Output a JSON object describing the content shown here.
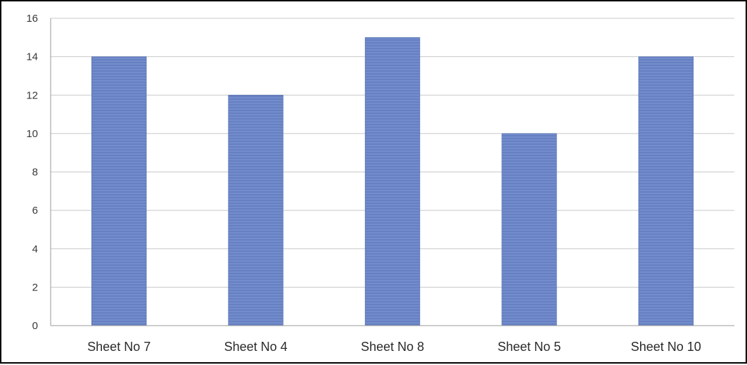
{
  "chart_data": {
    "type": "bar",
    "categories": [
      "Sheet No 7",
      "Sheet No 4",
      "Sheet No 8",
      "Sheet No 5",
      "Sheet No 10"
    ],
    "values": [
      14,
      12,
      15,
      10,
      14
    ],
    "ylim": [
      0,
      16
    ],
    "yticks": [
      0,
      2,
      4,
      6,
      8,
      10,
      12,
      14,
      16
    ],
    "grid": true,
    "legend": "none",
    "colors": {
      "bar": "#6b86c7",
      "bar_edge": "#4f6aae",
      "grid": "#c8c8c8",
      "axis": "#9a9a9a"
    }
  }
}
